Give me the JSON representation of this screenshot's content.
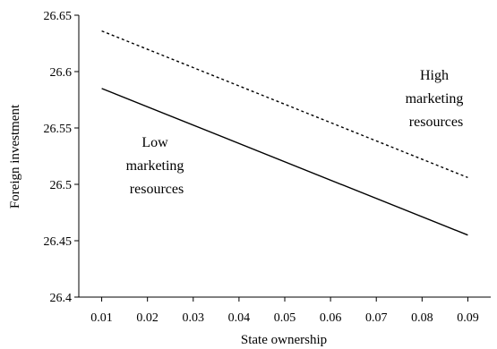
{
  "chart_data": {
    "type": "line",
    "xlabel": "State ownership",
    "ylabel": "Foreign investment",
    "x": [
      0.01,
      0.09
    ],
    "xlim": [
      0.005,
      0.095
    ],
    "ylim": [
      26.4,
      26.65
    ],
    "x_ticks": [
      "0.01",
      "0.02",
      "0.03",
      "0.04",
      "0.05",
      "0.06",
      "0.07",
      "0.08",
      "0.09"
    ],
    "y_ticks": [
      "26.4",
      "26.45",
      "26.5",
      "26.55",
      "26.6",
      "26.65"
    ],
    "grid": false,
    "series": [
      {
        "name": "High marketing resources",
        "line_style": "dashed",
        "values": [
          26.636,
          26.506
        ]
      },
      {
        "name": "Low marketing resources",
        "line_style": "solid",
        "values": [
          26.585,
          26.455
        ]
      }
    ],
    "annotations": [
      {
        "lines": [
          "High",
          "marketing",
          "resources"
        ]
      },
      {
        "lines": [
          "Low",
          "marketing",
          "resources"
        ]
      }
    ]
  }
}
